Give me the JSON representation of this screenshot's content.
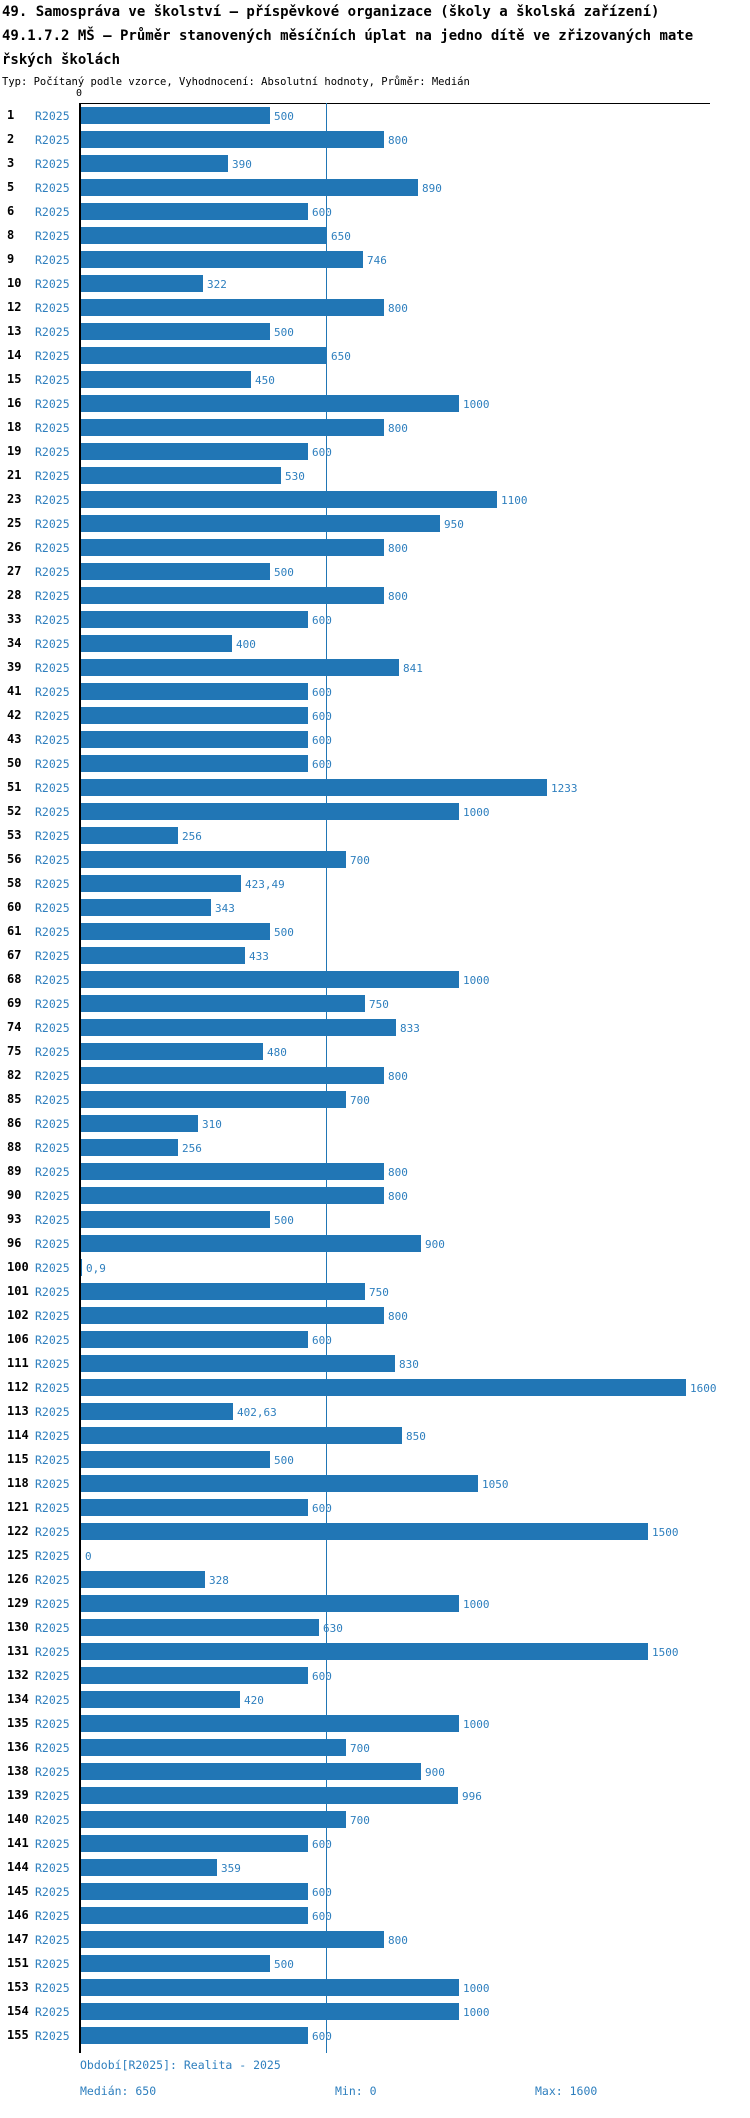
{
  "header": {
    "title_line1": "49. Samospráva ve školství – příspěvkové organizace (školy a školská zařízení)",
    "title_line2": "49.1.7.2 MŠ – Průměr stanovených měsíčních úplat na jedno dítě ve zřizovaných mateřských školách",
    "meta": "Typ: Počítaný podle vzorce, Vyhodnocení: Absolutní hodnoty, Průměr: Medián"
  },
  "chart_data": {
    "type": "bar",
    "orientation": "horizontal",
    "title": "49.1.7.2 MŠ – Průměr stanovených měsíčních úplat na jedno dítě ve zřizovaných mateřských školách",
    "series_label": "R2025",
    "axis_zero_label": "0",
    "xlim": [
      0,
      1666
    ],
    "grid": "median-only",
    "median_reference_line": 650,
    "bar_color": "#2176b5",
    "label_color": "#2e7fbe",
    "categories": [
      1,
      2,
      3,
      5,
      6,
      8,
      9,
      10,
      12,
      13,
      14,
      15,
      16,
      18,
      19,
      21,
      23,
      25,
      26,
      27,
      28,
      33,
      34,
      39,
      41,
      42,
      43,
      50,
      51,
      52,
      53,
      56,
      58,
      60,
      61,
      67,
      68,
      69,
      74,
      75,
      82,
      85,
      86,
      88,
      89,
      90,
      93,
      96,
      100,
      101,
      102,
      106,
      111,
      112,
      113,
      114,
      115,
      118,
      121,
      122,
      125,
      126,
      129,
      130,
      131,
      132,
      134,
      135,
      136,
      138,
      139,
      140,
      141,
      144,
      145,
      146,
      147,
      151,
      153,
      154,
      155
    ],
    "values": [
      500,
      800,
      390,
      890,
      600,
      650,
      746,
      322,
      800,
      500,
      650,
      450,
      1000,
      800,
      600,
      530,
      1100,
      950,
      800,
      500,
      800,
      600,
      400,
      841,
      600,
      600,
      600,
      600,
      1233,
      1000,
      256,
      700,
      423.49,
      343,
      500,
      433,
      1000,
      750,
      833,
      480,
      800,
      700,
      310,
      256,
      800,
      800,
      500,
      900,
      0.9,
      750,
      800,
      600,
      830,
      1600,
      402.63,
      850,
      500,
      1050,
      600,
      1500,
      0,
      328,
      1000,
      630,
      1500,
      600,
      420,
      1000,
      700,
      900,
      996,
      700,
      600,
      359,
      600,
      600,
      800,
      500,
      1000,
      1000,
      600
    ],
    "value_labels": [
      "500",
      "800",
      "390",
      "890",
      "600",
      "650",
      "746",
      "322",
      "800",
      "500",
      "650",
      "450",
      "1000",
      "800",
      "600",
      "530",
      "1100",
      "950",
      "800",
      "500",
      "800",
      "600",
      "400",
      "841",
      "600",
      "600",
      "600",
      "600",
      "1233",
      "1000",
      "256",
      "700",
      "423,49",
      "343",
      "500",
      "433",
      "1000",
      "750",
      "833",
      "480",
      "800",
      "700",
      "310",
      "256",
      "800",
      "800",
      "500",
      "900",
      "0,9",
      "750",
      "800",
      "600",
      "830",
      "1600",
      "402,63",
      "850",
      "500",
      "1050",
      "600",
      "1500",
      "0",
      "328",
      "1000",
      "630",
      "1500",
      "600",
      "420",
      "1000",
      "700",
      "900",
      "996",
      "700",
      "600",
      "359",
      "600",
      "600",
      "800",
      "500",
      "1000",
      "1000",
      "600"
    ]
  },
  "footer": {
    "period": "Období[R2025]: Realita - 2025",
    "median": "Medián: 650",
    "min": "Min: 0",
    "max": "Max: 1600"
  }
}
